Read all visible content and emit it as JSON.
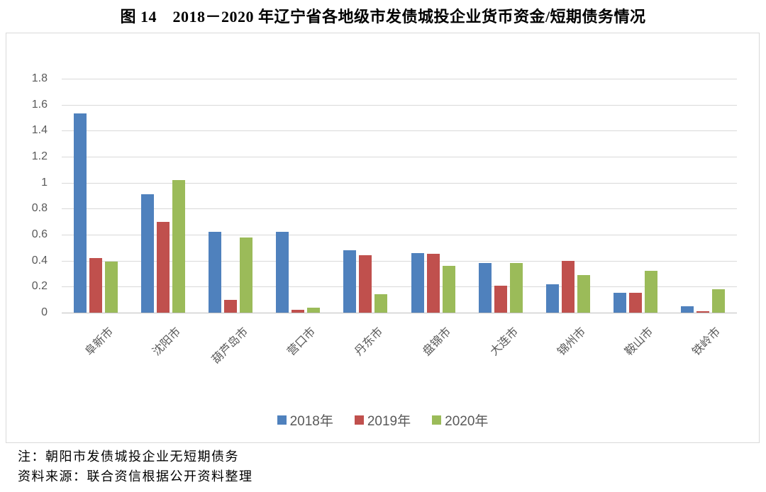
{
  "title": "图 14　2018－2020 年辽宁省各地级市发债城投企业货币资金/短期债务情况",
  "notes": {
    "note": "注：朝阳市发债城投企业无短期债务",
    "source": "资料来源：联合资信根据公开资料整理"
  },
  "colors": {
    "series_2018": "#4F81BD",
    "series_2019": "#C0504D",
    "series_2020": "#9BBB59",
    "gridline": "#D9D9D9",
    "zero_axis": "#BFBFBF",
    "axis_text": "#595959",
    "chart_border": "#D9D9D9"
  },
  "chart_data": {
    "type": "bar",
    "title": "图 14　2018－2020 年辽宁省各地级市发债城投企业货币资金/短期债务情况",
    "categories": [
      "阜新市",
      "沈阳市",
      "葫芦岛市",
      "营口市",
      "丹东市",
      "盘锦市",
      "大连市",
      "锦州市",
      "鞍山市",
      "铁岭市"
    ],
    "series": [
      {
        "name": "2018年",
        "color": "#4F81BD",
        "values": [
          1.53,
          0.91,
          0.62,
          0.62,
          0.48,
          0.46,
          0.38,
          0.22,
          0.15,
          0.05
        ]
      },
      {
        "name": "2019年",
        "color": "#C0504D",
        "values": [
          0.42,
          0.7,
          0.1,
          0.02,
          0.44,
          0.45,
          0.21,
          0.4,
          0.15,
          0.01
        ]
      },
      {
        "name": "2020年",
        "color": "#9BBB59",
        "values": [
          0.39,
          1.02,
          0.58,
          0.04,
          0.14,
          0.36,
          0.38,
          0.29,
          0.32,
          0.18
        ]
      }
    ],
    "xlabel": "",
    "ylabel": "",
    "ylim": [
      0,
      1.8
    ],
    "ytick_step": 0.2,
    "yticks": [
      "0",
      "0.2",
      "0.4",
      "0.6",
      "0.8",
      "1",
      "1.2",
      "1.4",
      "1.6",
      "1.8"
    ],
    "grid": true,
    "legend_position": "bottom"
  }
}
